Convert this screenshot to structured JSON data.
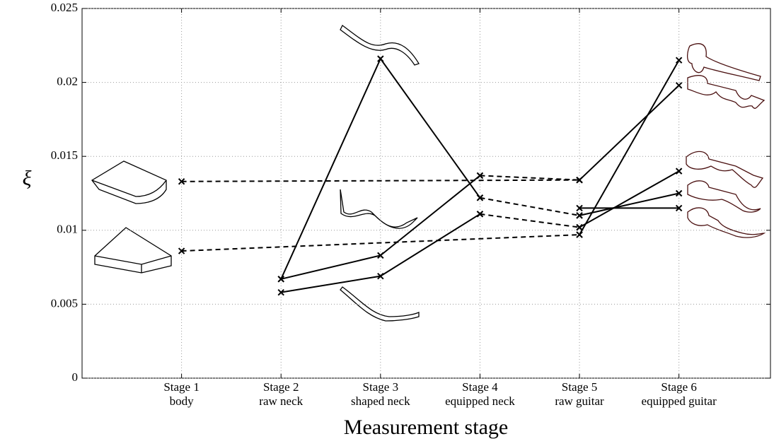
{
  "chart_data": {
    "type": "line",
    "x_label": "Measurement stage",
    "y_label": "ξ",
    "categories": [
      "Stage 1",
      "Stage 2",
      "Stage 3",
      "Stage 4",
      "Stage 5",
      "Stage 6"
    ],
    "category_sublabels": [
      "body",
      "raw neck",
      "shaped neck",
      "equipped neck",
      "raw guitar",
      "equipped guitar"
    ],
    "ylim": [
      0,
      0.025
    ],
    "yticks": [
      0,
      0.005,
      0.01,
      0.015,
      0.02,
      0.025
    ],
    "grid": true,
    "color": "#000000",
    "marker": "x",
    "series": [
      {
        "dashed": true,
        "values": [
          0.0133,
          null,
          null,
          null,
          0.0134,
          null
        ]
      },
      {
        "dashed": true,
        "values": [
          0.0086,
          null,
          null,
          null,
          0.0097,
          null
        ]
      },
      {
        "dashed": false,
        "values": [
          null,
          0.0067,
          0.0216,
          0.0122,
          null,
          null
        ]
      },
      {
        "dashed": true,
        "values": [
          null,
          null,
          null,
          0.0122,
          0.011,
          null
        ]
      },
      {
        "dashed": false,
        "values": [
          null,
          0.0067,
          0.0083,
          0.0137,
          null,
          null
        ]
      },
      {
        "dashed": true,
        "values": [
          null,
          null,
          null,
          0.0137,
          0.0134,
          null
        ]
      },
      {
        "dashed": false,
        "values": [
          null,
          0.0058,
          0.0069,
          0.0111,
          null,
          null
        ]
      },
      {
        "dashed": true,
        "values": [
          null,
          null,
          null,
          0.0111,
          0.0102,
          null
        ]
      },
      {
        "dashed": false,
        "values": [
          null,
          null,
          null,
          null,
          0.0134,
          0.0198
        ]
      },
      {
        "dashed": false,
        "values": [
          null,
          null,
          null,
          null,
          0.0097,
          0.0215
        ]
      },
      {
        "dashed": false,
        "values": [
          null,
          null,
          null,
          null,
          0.0102,
          0.014
        ]
      },
      {
        "dashed": false,
        "values": [
          null,
          null,
          null,
          null,
          0.011,
          0.0125
        ]
      },
      {
        "dashed": false,
        "values": [
          null,
          null,
          null,
          null,
          0.0115,
          0.0115
        ]
      }
    ]
  }
}
